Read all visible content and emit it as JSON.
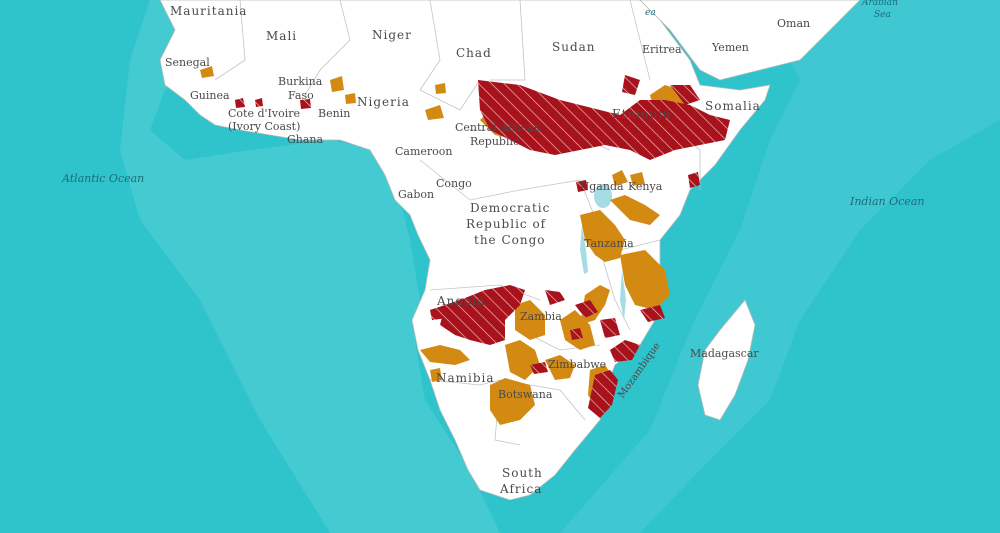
{
  "ocean_labels": {
    "atlantic": "Atlantic Ocean",
    "indian": "Indian Ocean",
    "arabian_sea_1": "Arabian",
    "arabian_sea_2": "Sea",
    "red_sea": "ea"
  },
  "country_labels": {
    "mauritania": "Mauritania",
    "mali": "Mali",
    "niger": "Niger",
    "chad": "Chad",
    "sudan": "Sudan",
    "eritrea": "Eritrea",
    "yemen": "Yemen",
    "oman": "Oman",
    "senegal": "Senegal",
    "guinea": "Guinea",
    "burkina_1": "Burkina",
    "burkina_2": "Faso",
    "benin": "Benin",
    "nigeria": "Nigeria",
    "cote_1": "Cote d'Ivoire",
    "cote_2": "(Ivory Coast)",
    "ghana": "Ghana",
    "car_1": "Central African",
    "car_2": "Republic",
    "ethiopia": "Ethiopia",
    "somalia": "Somalia",
    "cameroon": "Cameroon",
    "congo": "Congo",
    "gabon": "Gabon",
    "uganda": "Uganda",
    "kenya": "Kenya",
    "drc_1": "Democratic",
    "drc_2": "Republic of",
    "drc_3": "the Congo",
    "tanzania": "Tanzania",
    "angola": "Angola",
    "zambia": "Zambia",
    "zimbabwe": "Zimbabwe",
    "mozambique": "Mozambique",
    "madagascar": "Madagascar",
    "namibia": "Namibia",
    "botswana": "Botswana",
    "south_africa_1": "South",
    "south_africa_2": "Africa"
  },
  "colors": {
    "ocean": "#2fc3cc",
    "ocean_shallow": "#6fd6da",
    "land": "#ffffff",
    "border": "#bdbdbd",
    "range_orange": "#d38a13",
    "range_red": "#a8121c"
  }
}
